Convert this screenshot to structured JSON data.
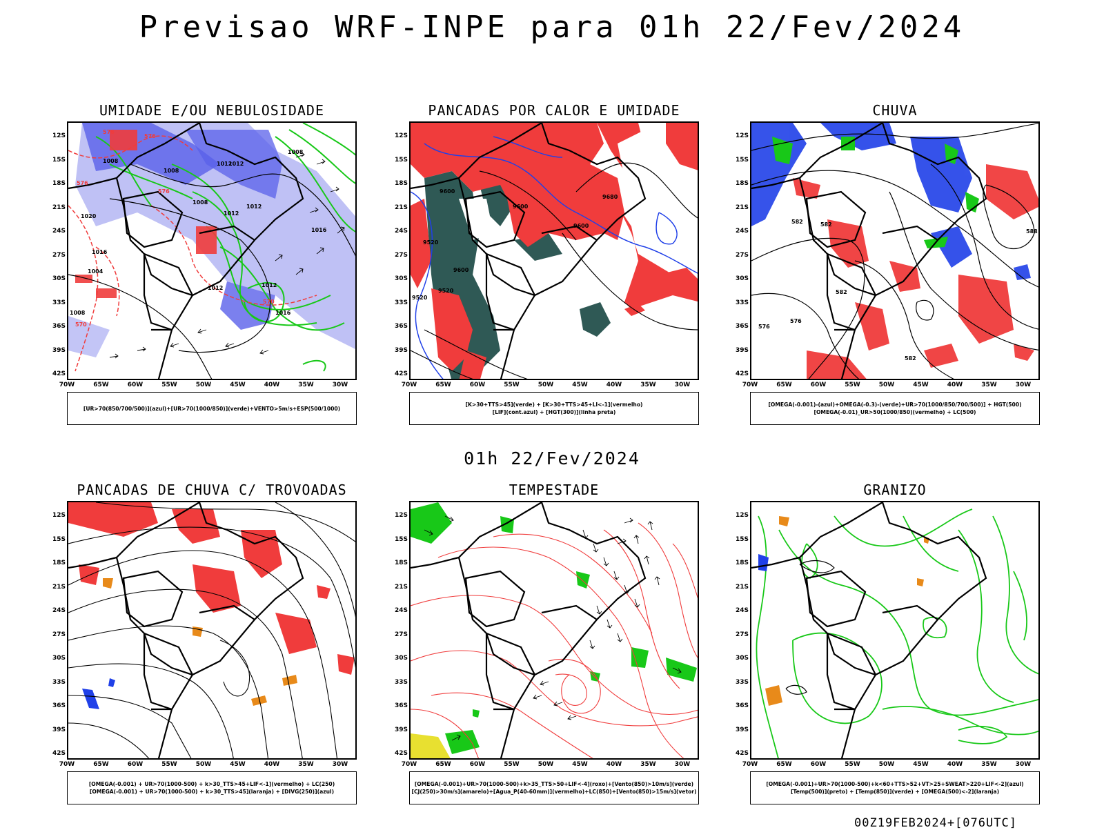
{
  "main_title": "Previsao WRF-INPE  para 01h 22/Fev/2024",
  "mid_title": "01h 22/Fev/2024",
  "footer": "00Z19FEB2024+[076UTC]",
  "lat_ticks": [
    "12S",
    "15S",
    "18S",
    "21S",
    "24S",
    "27S",
    "30S",
    "33S",
    "36S",
    "39S",
    "42S"
  ],
  "lon_ticks": [
    "70W",
    "65W",
    "60W",
    "55W",
    "50W",
    "45W",
    "40W",
    "35W",
    "30W"
  ],
  "panels": [
    {
      "id": "umidade",
      "title": "UMIDADE E/OU NEBULOSIDADE",
      "legend": [
        "[UR>70(850/700/500)](azul)+[UR>70(1000/850)](verde)+VENTO>5m/s+ESP(500/1000)"
      ],
      "contour_labels": [
        "1008",
        "1012",
        "1012",
        "1008",
        "1008",
        "1012",
        "1012",
        "1016",
        "1020",
        "1016",
        "1008",
        "1012",
        "1004",
        "1012",
        "1016",
        "1008",
        "576",
        "576",
        "576",
        "570",
        "570",
        "576"
      ]
    },
    {
      "id": "pancadas-calor",
      "title": "PANCADAS POR CALOR E UMIDADE",
      "legend": [
        "[K>30+TTS>45](verde) + [K>30+TTS>45+LI<-1](vermelho)",
        "[LIF](cont.azul) + [HGT(300)](linha preta)"
      ],
      "contour_labels": [
        "9600",
        "9600",
        "9680",
        "9600",
        "9520",
        "9600",
        "9520",
        "9520"
      ]
    },
    {
      "id": "chuva",
      "title": "CHUVA",
      "legend": [
        "[OMEGA(-0.001)-(azul)+OMEGA(-0.3)-(verde)+UR>70(1000/850/700/500)] + HGT(500)",
        "[OMEGA(-0.01)_UR>50(1000/850)(vermelho) + LC(500)"
      ],
      "contour_labels": [
        "582",
        "582",
        "588",
        "582",
        "576",
        "576",
        "582"
      ]
    },
    {
      "id": "pancadas-trovoadas",
      "title": "PANCADAS DE CHUVA C/ TROVOADAS",
      "legend": [
        "[OMEGA(-0.001) + UR>70(1000-500) + k>30_TTS>45+LIF<-1](vermelho) + LC(250)",
        "[OMEGA(-0.001) + UR>70(1000-500) + k>30_TTS>45](laranja) + [DIVG(250)](azul)"
      ],
      "contour_labels": []
    },
    {
      "id": "tempestade",
      "title": "TEMPESTADE",
      "legend": [
        "[OMEGA(-0.001)+UR>70(1000-500)+k>35_TTS>50+LIF<-4](roxo)+[Vento(850)>10m/s](verde)",
        "[CJ(250)>30m/s](amarelo)+[Agua_P(40-60mm)](vermelho)+LC(850)+[Vento(850)>15m/s](vetor)"
      ],
      "contour_labels": []
    },
    {
      "id": "granizo",
      "title": "GRANIZO",
      "legend": [
        "[OMEGA(-0.001)+UR>70(1000-500)+k<60+TTS>52+VT>25+SWEAT>220+LIF<-2](azul)",
        "[Temp(500)](preto) + [Temp(850)](verde) + [OMEGA(500)<-2](laranja)"
      ],
      "contour_labels": []
    }
  ],
  "colors": {
    "red": "#f03c3c",
    "blue": "#2040e8",
    "green": "#18c818",
    "lavender": "#a9acf2",
    "teal": "#2f5955",
    "orange": "#e88a1a",
    "yellow": "#e8e030"
  }
}
